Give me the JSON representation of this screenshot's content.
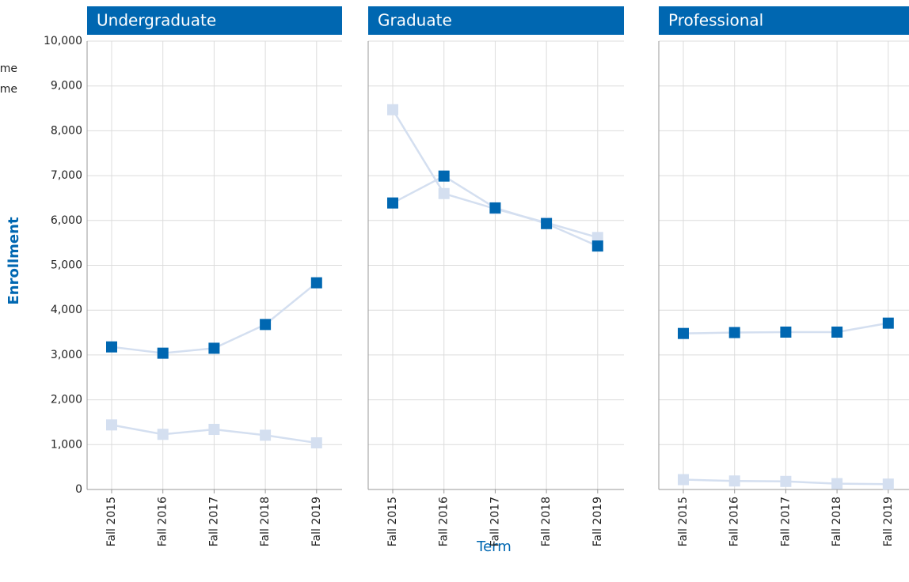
{
  "chart_data": [
    {
      "type": "line",
      "title": "Undergraduate",
      "y_label": "Enrollment",
      "categories": [
        "Fall 2015",
        "Fall 2016",
        "Fall 2017",
        "Fall 2018",
        "Fall 2019"
      ],
      "series": [
        {
          "name": "me",
          "color": "#0067b1",
          "values": [
            3180,
            3040,
            3150,
            3680,
            4610
          ]
        },
        {
          "name": "me",
          "color": "#d4dff0",
          "values": [
            1440,
            1230,
            1340,
            1210,
            1040
          ]
        }
      ],
      "ylim": [
        0,
        10000
      ],
      "yticks": [
        0,
        {
          "value": 1000,
          "label": "1,000"
        },
        {
          "value": 2000,
          "label": "2,000"
        },
        {
          "value": 3000,
          "label": "3,000"
        },
        {
          "value": 4000,
          "label": "4,000"
        },
        {
          "value": 5000,
          "label": "5,000"
        },
        {
          "value": 6000,
          "label": "6,000"
        },
        {
          "value": 7000,
          "label": "7,000"
        },
        {
          "value": 8000,
          "label": "8,000"
        },
        {
          "value": 9000,
          "label": "9,000"
        },
        {
          "value": 10000,
          "label": "10,000"
        }
      ],
      "grid": true
    },
    {
      "type": "line",
      "title": "Graduate",
      "x_label": "Term",
      "categories": [
        "Fall 2015",
        "Fall 2016",
        "Fall 2017",
        "Fall 2018",
        "Fall 2019"
      ],
      "series": [
        {
          "color": "#0067b1",
          "values": [
            6390,
            6990,
            6280,
            5930,
            5430
          ]
        },
        {
          "color": "#d4dff0",
          "values": [
            8470,
            6600,
            6260,
            5950,
            5620
          ]
        }
      ],
      "grid": true
    },
    {
      "type": "line",
      "title": "Professional",
      "categories": [
        "Fall 2015",
        "Fall 2016",
        "Fall 2017",
        "Fall 2018",
        "Fall 2019"
      ],
      "series": [
        {
          "color": "#0067b1",
          "values": [
            3480,
            3500,
            3510,
            3510,
            3710
          ]
        },
        {
          "color": "#d4dff0",
          "values": [
            220,
            190,
            180,
            130,
            120
          ]
        }
      ],
      "grid": true
    }
  ]
}
